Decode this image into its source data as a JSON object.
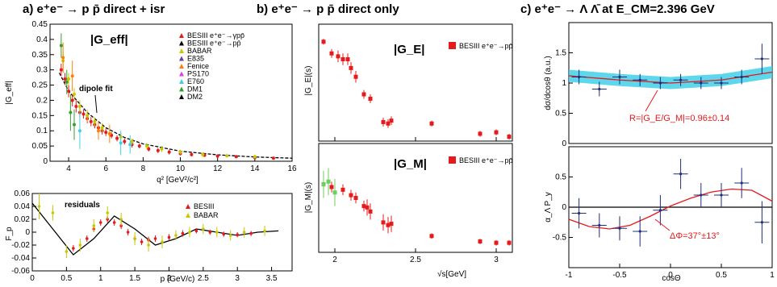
{
  "panels": {
    "a": {
      "title": "a) e⁺e⁻ → p p̄  direct + isr",
      "big_label": "|G_eff|",
      "annotation": "dipole fit",
      "y_label": "|G_eff|",
      "x_label": "q² [GeV²/c²]",
      "legend": [
        {
          "label": "BESIII  e⁺e⁻→γpp̄",
          "color": "#e41a1c"
        },
        {
          "label": "BESIII  e⁺e⁻→pp̄",
          "color": "#000000"
        },
        {
          "label": "BABAR",
          "color": "#c8c800"
        },
        {
          "label": "E835",
          "color": "#6a3d9a"
        },
        {
          "label": "Fenice",
          "color": "#ff7f00"
        },
        {
          "label": "PS170",
          "color": "#e040e0"
        },
        {
          "label": "E760",
          "color": "#40d0e0"
        },
        {
          "label": "DM1",
          "color": "#33a02c"
        },
        {
          "label": "DM2",
          "color": "#000000"
        }
      ]
    },
    "a_res": {
      "annotation": "residuals",
      "y_label": "F_p",
      "x_label": "p (GeV/c)",
      "legend": [
        {
          "label": "BESIII",
          "color": "#e41a1c"
        },
        {
          "label": "BABAR",
          "color": "#c8c800"
        }
      ]
    },
    "b": {
      "title": "b) e⁺e⁻ → p p̄  direct only",
      "top_big": "|G_E|",
      "bot_big": "|G_M|",
      "legend_top": "BESIII e⁺e⁻→pp̄",
      "legend_bot": "BESIII e⁺e⁻→pp̄",
      "y_label_top": "|G_E|(s)",
      "y_label_bot": "|G_M|(s)",
      "x_label": "√s[GeV]"
    },
    "c": {
      "title": "c) e⁺e⁻ → Λ Λ̄ at E_CM=2.396 GeV",
      "annotation_top": "R=|G_E/G_M|=0.96±0.14",
      "annotation_bot": "ΔΦ=37°±13°",
      "y_label_top": "dσ/dcosθ (a.u.)",
      "y_label_bot": "α_Λ P_y",
      "x_label": "cosΘ"
    }
  },
  "chart_data": [
    {
      "id": "a_main",
      "type": "scatter",
      "xlim": [
        3,
        16
      ],
      "ylim": [
        0,
        0.45
      ],
      "x_ticks": [
        4,
        6,
        8,
        10,
        12,
        14,
        16
      ],
      "y_ticks": [
        0,
        0.05,
        0.1,
        0.15,
        0.2,
        0.25,
        0.3,
        0.35,
        0.4,
        0.45
      ],
      "series": [
        {
          "name": "BESIII e⁺e⁻→γpp̄",
          "color": "#e41a1c",
          "x": [
            3.6,
            3.8,
            4.0,
            4.2,
            4.4,
            4.6,
            4.8,
            5.0,
            5.2,
            5.4,
            5.6,
            5.8,
            6.0,
            6.3,
            6.6,
            7.0,
            7.4,
            7.8,
            8.3,
            8.8,
            9.4,
            10.0,
            10.6,
            11.3,
            12.0,
            13.0,
            14.0,
            15.0
          ],
          "y": [
            0.3,
            0.27,
            0.23,
            0.2,
            0.18,
            0.16,
            0.155,
            0.14,
            0.13,
            0.12,
            0.11,
            0.1,
            0.095,
            0.085,
            0.075,
            0.065,
            0.055,
            0.05,
            0.04,
            0.035,
            0.03,
            0.025,
            0.022,
            0.02,
            0.017,
            0.015,
            0.012,
            0.01
          ],
          "err": [
            0.02,
            0.02,
            0.02,
            0.02,
            0.02,
            0.015,
            0.015,
            0.015,
            0.015,
            0.012,
            0.012,
            0.012,
            0.012,
            0.01,
            0.01,
            0.01,
            0.01,
            0.008,
            0.008,
            0.008,
            0.008,
            0.006,
            0.006,
            0.006,
            0.006,
            0.005,
            0.005,
            0.005
          ]
        },
        {
          "name": "BABAR",
          "color": "#c8c800",
          "x": [
            3.7,
            4.0,
            4.3,
            4.6,
            5.0,
            5.4,
            5.8,
            6.2,
            6.8,
            7.4,
            8.2,
            9.0,
            10.0,
            11.2,
            12.5,
            14.0
          ],
          "y": [
            0.33,
            0.27,
            0.22,
            0.18,
            0.15,
            0.13,
            0.11,
            0.09,
            0.08,
            0.065,
            0.05,
            0.04,
            0.03,
            0.022,
            0.018,
            0.015
          ],
          "err": [
            0.03,
            0.02,
            0.02,
            0.02,
            0.02,
            0.015,
            0.015,
            0.012,
            0.012,
            0.01,
            0.01,
            0.01,
            0.008,
            0.008,
            0.006,
            0.006
          ]
        },
        {
          "name": "E760",
          "color": "#40d0e0",
          "x": [
            4.6,
            6.8,
            7.3
          ],
          "y": [
            0.1,
            0.06,
            0.055
          ],
          "err": [
            0.06,
            0.04,
            0.03
          ]
        },
        {
          "name": "DM1",
          "color": "#33a02c",
          "x": [
            3.6,
            3.9,
            4.1,
            4.3
          ],
          "y": [
            0.38,
            0.26,
            0.16,
            0.12
          ],
          "err": [
            0.04,
            0.04,
            0.06,
            0.05
          ]
        },
        {
          "name": "Fenice",
          "color": "#ff7f00",
          "x": [
            3.7,
            4.2,
            5.6,
            6.2
          ],
          "y": [
            0.34,
            0.28,
            0.1,
            0.09
          ],
          "err": [
            0.05,
            0.05,
            0.03,
            0.03
          ]
        }
      ],
      "fit": {
        "name": "dipole fit",
        "x": [
          3.5,
          4,
          5,
          6,
          7,
          8,
          10,
          12,
          14,
          16
        ],
        "y": [
          0.29,
          0.23,
          0.16,
          0.11,
          0.078,
          0.057,
          0.033,
          0.021,
          0.014,
          0.01
        ]
      }
    },
    {
      "id": "a_res",
      "type": "scatter",
      "xlim": [
        0,
        3.8
      ],
      "ylim": [
        -0.06,
        0.06
      ],
      "x_ticks": [
        0,
        0.5,
        1,
        1.5,
        2,
        2.5,
        3,
        3.5
      ],
      "y_ticks": [
        -0.06,
        -0.04,
        -0.02,
        0,
        0.02,
        0.04,
        0.06
      ],
      "series": [
        {
          "name": "BESIII",
          "color": "#e41a1c",
          "x": [
            0.6,
            0.8,
            0.9,
            1.0,
            1.1,
            1.2,
            1.3,
            1.4,
            1.5,
            1.6,
            1.7,
            1.8,
            2.0,
            2.2,
            2.4,
            2.6,
            2.8,
            3.0,
            3.2
          ],
          "y": [
            -0.025,
            -0.01,
            0.005,
            0.015,
            0.02,
            0.015,
            0.01,
            0.0,
            -0.01,
            -0.015,
            -0.012,
            -0.01,
            -0.008,
            -0.002,
            0.002,
            0.0,
            -0.003,
            -0.004,
            -0.002
          ],
          "err": [
            0.005,
            0.005,
            0.005,
            0.005,
            0.005,
            0.005,
            0.005,
            0.005,
            0.005,
            0.005,
            0.005,
            0.005,
            0.005,
            0.005,
            0.004,
            0.004,
            0.004,
            0.004,
            0.004
          ]
        },
        {
          "name": "BABAR",
          "color": "#c8c800",
          "x": [
            0.1,
            0.3,
            0.5,
            0.7,
            0.9,
            1.1,
            1.3,
            1.5,
            1.7,
            1.9,
            2.1,
            2.3,
            2.5,
            2.7,
            2.9,
            3.1,
            3.4
          ],
          "y": [
            0.04,
            0.03,
            -0.03,
            -0.02,
            0.01,
            0.03,
            0.02,
            -0.01,
            -0.02,
            -0.015,
            -0.005,
            0.0,
            0.005,
            0.0,
            -0.005,
            0.0,
            0.002
          ],
          "err": [
            0.02,
            0.012,
            0.01,
            0.01,
            0.01,
            0.01,
            0.01,
            0.01,
            0.01,
            0.01,
            0.008,
            0.008,
            0.008,
            0.008,
            0.008,
            0.008,
            0.008
          ]
        }
      ],
      "fit": {
        "x": [
          0,
          0.3,
          0.6,
          0.9,
          1.2,
          1.5,
          1.8,
          2.1,
          2.4,
          2.7,
          3.0,
          3.3,
          3.6
        ],
        "y": [
          0.045,
          0.005,
          -0.035,
          -0.01,
          0.025,
          0.005,
          -0.02,
          -0.01,
          0.005,
          0.0,
          -0.005,
          0.0,
          0.002
        ]
      }
    },
    {
      "id": "b_ge",
      "type": "scatter",
      "xlim": [
        1.9,
        3.1
      ],
      "ylim": [
        0,
        0.4
      ],
      "series": [
        {
          "name": "BESIII e⁺e⁻→pp̄",
          "color": "#e41a1c",
          "x": [
            1.93,
            1.98,
            2.02,
            2.05,
            2.08,
            2.1,
            2.13,
            2.18,
            2.22,
            2.3,
            2.33,
            2.35,
            2.6,
            2.9,
            3.0,
            3.08
          ],
          "y": [
            0.34,
            0.3,
            0.29,
            0.28,
            0.28,
            0.25,
            0.22,
            0.16,
            0.145,
            0.065,
            0.06,
            0.07,
            0.06,
            0.025,
            0.03,
            0.015
          ],
          "err": [
            0.01,
            0.015,
            0.02,
            0.02,
            0.02,
            0.02,
            0.02,
            0.015,
            0.015,
            0.015,
            0.015,
            0.015,
            0.01,
            0.01,
            0.01,
            0.01
          ]
        }
      ]
    },
    {
      "id": "b_gm",
      "type": "scatter",
      "xlim": [
        1.9,
        3.1
      ],
      "ylim": [
        0,
        0.4
      ],
      "x_ticks": [
        2,
        2.5,
        3
      ],
      "series": [
        {
          "name": "BESIII e⁺e⁻→pp̄",
          "color": "#e41a1c",
          "x": [
            1.93,
            1.98,
            2.05,
            2.1,
            2.13,
            2.18,
            2.2,
            2.22,
            2.3,
            2.33,
            2.35,
            2.6,
            2.9,
            3.0,
            3.08
          ],
          "y": [
            0.25,
            0.24,
            0.23,
            0.21,
            0.2,
            0.17,
            0.165,
            0.15,
            0.11,
            0.1,
            0.105,
            0.06,
            0.04,
            0.035,
            0.035
          ],
          "err": [
            0.02,
            0.02,
            0.02,
            0.02,
            0.02,
            0.02,
            0.03,
            0.03,
            0.03,
            0.03,
            0.03,
            0.01,
            0.01,
            0.01,
            0.01
          ]
        },
        {
          "name": "other",
          "color": "#6bcf5b",
          "x": [
            1.93,
            1.96,
            2.0
          ],
          "y": [
            0.25,
            0.26,
            0.22
          ],
          "err": [
            0.05,
            0.05,
            0.05
          ]
        }
      ]
    },
    {
      "id": "c_top",
      "type": "scatter",
      "xlim": [
        -1,
        1
      ],
      "ylim": [
        0,
        2
      ],
      "y_ticks": [
        0,
        0.5,
        1,
        1.5
      ],
      "series": [
        {
          "name": "data",
          "color": "#1f2d7a",
          "x": [
            -0.9,
            -0.7,
            -0.5,
            -0.3,
            -0.1,
            0.1,
            0.3,
            0.5,
            0.7,
            0.9
          ],
          "y": [
            1.1,
            0.9,
            1.1,
            1.05,
            1.0,
            1.05,
            1.0,
            1.0,
            1.1,
            1.4
          ],
          "err": [
            0.12,
            0.12,
            0.12,
            0.1,
            0.1,
            0.1,
            0.1,
            0.1,
            0.12,
            0.25
          ]
        }
      ],
      "fit": {
        "x": [
          -1,
          -0.5,
          0,
          0.5,
          1
        ],
        "y": [
          1.12,
          1.05,
          1.0,
          1.05,
          1.18
        ]
      }
    },
    {
      "id": "c_bot",
      "type": "scatter",
      "xlim": [
        -1,
        1
      ],
      "ylim": [
        -1,
        1
      ],
      "x_ticks": [
        -1,
        -0.5,
        0,
        0.5,
        1
      ],
      "y_ticks": [
        -0.5,
        0,
        0.5
      ],
      "series": [
        {
          "name": "data",
          "color": "#1f2d7a",
          "x": [
            -0.9,
            -0.7,
            -0.5,
            -0.3,
            -0.1,
            0.1,
            0.3,
            0.5,
            0.7,
            0.9
          ],
          "y": [
            -0.1,
            -0.3,
            -0.35,
            -0.4,
            -0.05,
            0.55,
            0.2,
            0.2,
            0.4,
            -0.25
          ],
          "err": [
            0.25,
            0.2,
            0.2,
            0.25,
            0.25,
            0.25,
            0.2,
            0.2,
            0.25,
            0.35
          ]
        }
      ],
      "fit": {
        "x": [
          -1,
          -0.8,
          -0.6,
          -0.4,
          -0.2,
          0,
          0.2,
          0.4,
          0.6,
          0.8,
          1
        ],
        "y": [
          -0.2,
          -0.32,
          -0.36,
          -0.3,
          -0.15,
          0.02,
          0.15,
          0.25,
          0.3,
          0.28,
          0.1
        ]
      }
    }
  ]
}
